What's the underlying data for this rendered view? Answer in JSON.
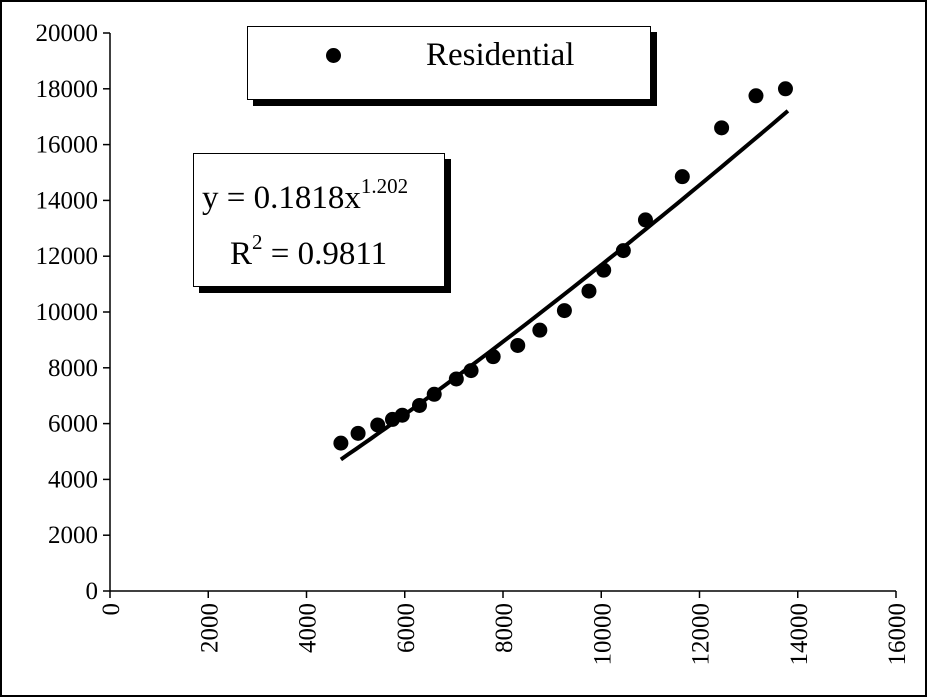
{
  "chart_data": {
    "type": "scatter",
    "xlim": [
      0,
      16000
    ],
    "ylim": [
      0,
      20000
    ],
    "x_ticks": [
      "0",
      "2000",
      "4000",
      "6000",
      "8000",
      "10000",
      "12000",
      "14000",
      "16000"
    ],
    "y_ticks": [
      "0",
      "2000",
      "4000",
      "6000",
      "8000",
      "10000",
      "12000",
      "14000",
      "16000",
      "18000",
      "20000"
    ],
    "x_tick_rotation": "vertical",
    "grid": false,
    "legend": {
      "position": "top",
      "entries": [
        "Residential"
      ]
    },
    "series": [
      {
        "name": "Residential",
        "marker": "circle",
        "color": "#000000",
        "points": [
          [
            4700,
            5300
          ],
          [
            5050,
            5650
          ],
          [
            5450,
            5950
          ],
          [
            5750,
            6150
          ],
          [
            5950,
            6300
          ],
          [
            6300,
            6650
          ],
          [
            6600,
            7050
          ],
          [
            7050,
            7600
          ],
          [
            7350,
            7900
          ],
          [
            7800,
            8400
          ],
          [
            8300,
            8800
          ],
          [
            8750,
            9350
          ],
          [
            9250,
            10050
          ],
          [
            9750,
            10750
          ],
          [
            10050,
            11500
          ],
          [
            10450,
            12200
          ],
          [
            10900,
            13300
          ],
          [
            11650,
            14850
          ],
          [
            12450,
            16600
          ],
          [
            13150,
            17750
          ],
          [
            13750,
            18000
          ]
        ]
      }
    ],
    "trendline": {
      "type": "power",
      "coefficient": 0.1818,
      "exponent": 1.202,
      "x_range": [
        4700,
        13800
      ],
      "color": "#000000"
    },
    "annotation": {
      "eq_prefix": "y = 0.1818x",
      "eq_exponent": "1.202",
      "r2_prefix": "R",
      "r2_exponent": "2",
      "r2_suffix": " = 0.9811"
    }
  }
}
